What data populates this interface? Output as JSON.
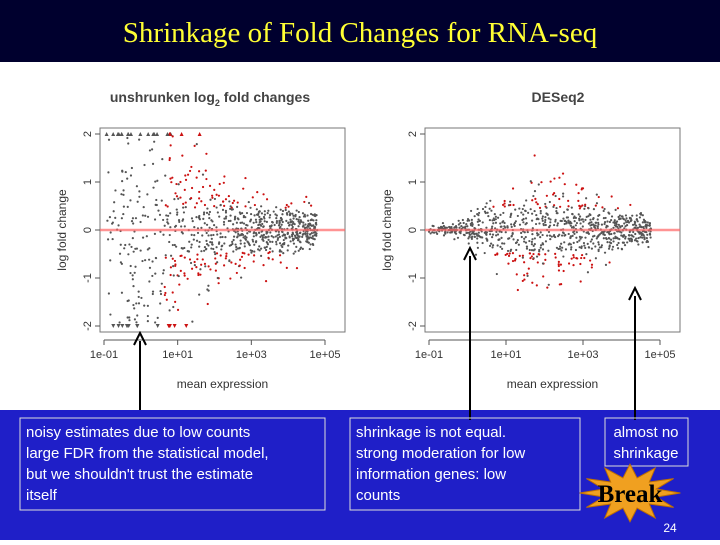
{
  "slide": {
    "title": "Shrinkage of Fold Changes for RNA-seq",
    "plots": [
      {
        "title_parts": [
          "unshrunken log",
          "2",
          " fold changes"
        ],
        "ylabel": "log fold change",
        "xlabel": "mean expression",
        "yticks": [
          "2",
          "1",
          "0",
          "-1",
          "-2"
        ],
        "xticks": [
          "1e-01",
          "1e+01",
          "1e+03",
          "1e+05"
        ]
      },
      {
        "title_parts": [
          "DESeq2"
        ],
        "ylabel": "log fold change",
        "xlabel": "mean expression",
        "yticks": [
          "2",
          "1",
          "0",
          "-1",
          "-2"
        ],
        "xticks": [
          "1e-01",
          "1e+01",
          "1e+03",
          "1e+05"
        ]
      }
    ],
    "notes": [
      {
        "lines": [
          "noisy estimates due to low counts",
          "large FDR from the statistical model,",
          "but we shouldn't trust the estimate",
          "itself"
        ]
      },
      {
        "lines": [
          "shrinkage is not equal.",
          "strong moderation for low",
          "information genes: low",
          "counts"
        ]
      },
      {
        "lines": [
          "almost no",
          "shrinkage"
        ]
      }
    ],
    "badge": "Break",
    "page_number": "24"
  }
}
